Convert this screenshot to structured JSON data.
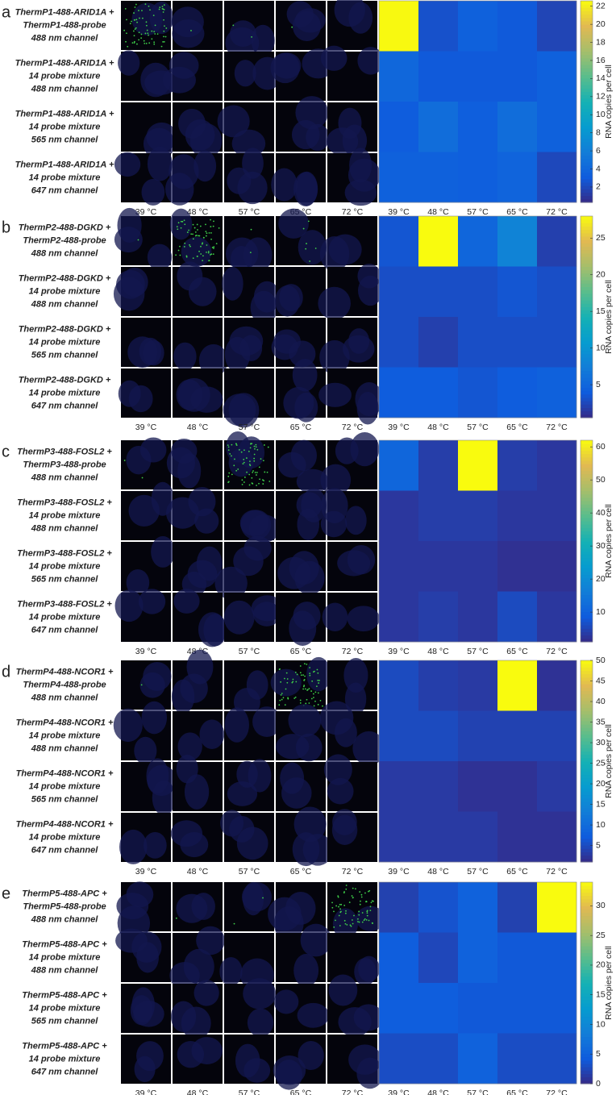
{
  "panels": [
    {
      "letter": "a",
      "row_labels": [
        [
          "ThermP1-488-ARID1A +",
          "ThermP1-488-probe",
          "488 nm channel"
        ],
        [
          "ThermP1-488-ARID1A +",
          "14 probe mixture",
          "488 nm channel"
        ],
        [
          "ThermP1-488-ARID1A +",
          "14 probe mixture",
          "565 nm channel"
        ],
        [
          "ThermP1-488-ARID1A +",
          "14 probe mixture",
          "647 nm channel"
        ]
      ]
    },
    {
      "letter": "b",
      "row_labels": [
        [
          "ThermP2-488-DGKD +",
          "ThermP2-488-probe",
          "488 nm channel"
        ],
        [
          "ThermP2-488-DGKD +",
          "14 probe mixture",
          "488 nm channel"
        ],
        [
          "ThermP2-488-DGKD +",
          "14 probe mixture",
          "565 nm channel"
        ],
        [
          "ThermP2-488-DGKD +",
          "14 probe mixture",
          "647 nm channel"
        ]
      ]
    },
    {
      "letter": "c",
      "row_labels": [
        [
          "ThermP3-488-FOSL2 +",
          "ThermP3-488-probe",
          "488 nm channel"
        ],
        [
          "ThermP3-488-FOSL2 +",
          "14 probe mixture",
          "488 nm channel"
        ],
        [
          "ThermP3-488-FOSL2 +",
          "14 probe mixture",
          "565 nm channel"
        ],
        [
          "ThermP3-488-FOSL2 +",
          "14 probe mixture",
          "647 nm channel"
        ]
      ]
    },
    {
      "letter": "d",
      "row_labels": [
        [
          "ThermP4-488-NCOR1 +",
          "ThermP4-488-probe",
          "488 nm channel"
        ],
        [
          "ThermP4-488-NCOR1 +",
          "14 probe mixture",
          "488 nm channel"
        ],
        [
          "ThermP4-488-NCOR1 +",
          "14 probe mixture",
          "565 nm channel"
        ],
        [
          "ThermP4-488-NCOR1 +",
          "14 probe mixture",
          "647 nm channel"
        ]
      ]
    },
    {
      "letter": "e",
      "row_labels": [
        [
          "ThermP5-488-APC +",
          "ThermP5-488-probe",
          "488 nm channel"
        ],
        [
          "ThermP5-488-APC +",
          "14 probe mixture",
          "488 nm channel"
        ],
        [
          "ThermP5-488-APC +",
          "14 probe mixture",
          "565 nm channel"
        ],
        [
          "ThermP5-488-APC +",
          "14 probe mixture",
          "647 nm channel"
        ]
      ]
    }
  ],
  "chart_data": [
    {
      "type": "heatmap",
      "colormap": "parula",
      "categories": [
        "39 °C",
        "48 °C",
        "57 °C",
        "65 °C",
        "72 °C"
      ],
      "values": [
        [
          22.5,
          2.5,
          3.5,
          3,
          1.8
        ],
        [
          4,
          3,
          3,
          3,
          3.5
        ],
        [
          3.2,
          4.5,
          3.3,
          4.5,
          3.5
        ],
        [
          3.5,
          3.5,
          3.3,
          3.8,
          2
        ]
      ],
      "zlim": [
        0.3,
        22.6
      ],
      "zticks": [
        2,
        4,
        6,
        8,
        10,
        12,
        14,
        16,
        18,
        20,
        22
      ],
      "colorbar_label": "RNA copies per cell"
    },
    {
      "type": "heatmap",
      "colormap": "parula",
      "categories": [
        "39 °C",
        "48 °C",
        "57 °C",
        "65 °C",
        "72 °C"
      ],
      "values": [
        [
          3.5,
          28,
          5,
          8,
          2
        ],
        [
          3,
          3,
          3,
          3.5,
          3
        ],
        [
          3,
          2,
          3,
          3,
          3
        ],
        [
          4,
          4,
          3.5,
          4,
          4.5
        ]
      ],
      "zlim": [
        0.5,
        28
      ],
      "zticks": [
        5,
        10,
        15,
        20,
        25
      ],
      "colorbar_label": "RNA copies per cell"
    },
    {
      "type": "heatmap",
      "colormap": "parula",
      "categories": [
        "39 °C",
        "48 °C",
        "57 °C",
        "65 °C",
        "72 °C"
      ],
      "values": [
        [
          11,
          4,
          62,
          4,
          3
        ],
        [
          3,
          4,
          4,
          3,
          3
        ],
        [
          3,
          3,
          3,
          2,
          2
        ],
        [
          3,
          4,
          3,
          6,
          3
        ]
      ],
      "zlim": [
        1,
        62
      ],
      "zticks": [
        10,
        20,
        30,
        40,
        50,
        60
      ],
      "colorbar_label": "RNA copies per cell"
    },
    {
      "type": "heatmap",
      "colormap": "parula",
      "categories": [
        "39 °C",
        "48 °C",
        "57 °C",
        "65 °C",
        "72 °C"
      ],
      "values": [
        [
          5,
          3.5,
          3,
          50,
          2
        ],
        [
          5,
          5,
          4,
          4,
          4
        ],
        [
          3,
          3,
          2,
          2,
          3
        ],
        [
          3,
          3,
          3,
          2,
          2
        ]
      ],
      "zlim": [
        1,
        50
      ],
      "zticks": [
        5,
        10,
        15,
        20,
        25,
        30,
        35,
        40,
        45,
        50
      ],
      "colorbar_label": "RNA copies per cell"
    },
    {
      "type": "heatmap",
      "colormap": "parula",
      "categories": [
        "39 °C",
        "48 °C",
        "57 °C",
        "65 °C",
        "72 °C"
      ],
      "values": [
        [
          2,
          3.5,
          5,
          2,
          34
        ],
        [
          4.5,
          2.5,
          5,
          4,
          4
        ],
        [
          4.5,
          4.5,
          4,
          4,
          4
        ],
        [
          3,
          3,
          5,
          3,
          3
        ]
      ],
      "zlim": [
        0,
        34
      ],
      "zticks": [
        0,
        5,
        10,
        15,
        20,
        25,
        30
      ],
      "colorbar_label": "RNA copies per cell"
    }
  ]
}
